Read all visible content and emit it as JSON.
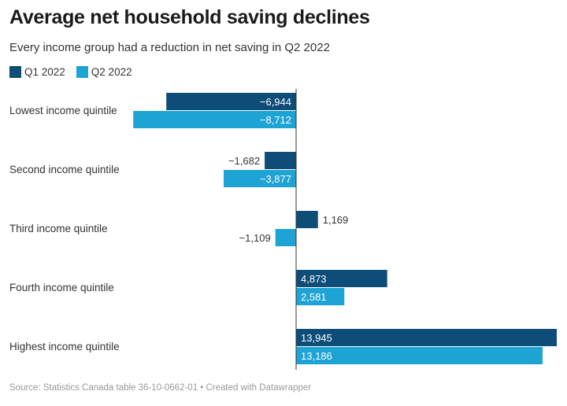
{
  "title": "Average net household saving declines",
  "subtitle": "Every income group had a reduction in net saving in Q2 2022",
  "footer": "Source: Statistics Canada table 36-10-0662-01 • Created with Datawrapper",
  "chart_data": {
    "type": "bar",
    "orientation": "horizontal",
    "title": "Average net household saving declines",
    "subtitle": "Every income group had a reduction in net saving in Q2 2022",
    "categories": [
      "Lowest income quintile",
      "Second income quintile",
      "Third income quintile",
      "Fourth income quintile",
      "Highest income quintile"
    ],
    "series": [
      {
        "name": "Q1 2022",
        "color": "#0d4d78",
        "values": [
          -6944,
          -1682,
          1169,
          4873,
          13945
        ],
        "labels": [
          "−6,944",
          "−1,682",
          "1,169",
          "4,873",
          "13,945"
        ]
      },
      {
        "name": "Q2 2022",
        "color": "#1ea3d5",
        "values": [
          -8712,
          -3877,
          -1109,
          2581,
          13186
        ],
        "labels": [
          "−8,712",
          "−3,877",
          "−1,109",
          "2,581",
          "13,186"
        ]
      }
    ],
    "legend": "top-left",
    "grid": false
  }
}
